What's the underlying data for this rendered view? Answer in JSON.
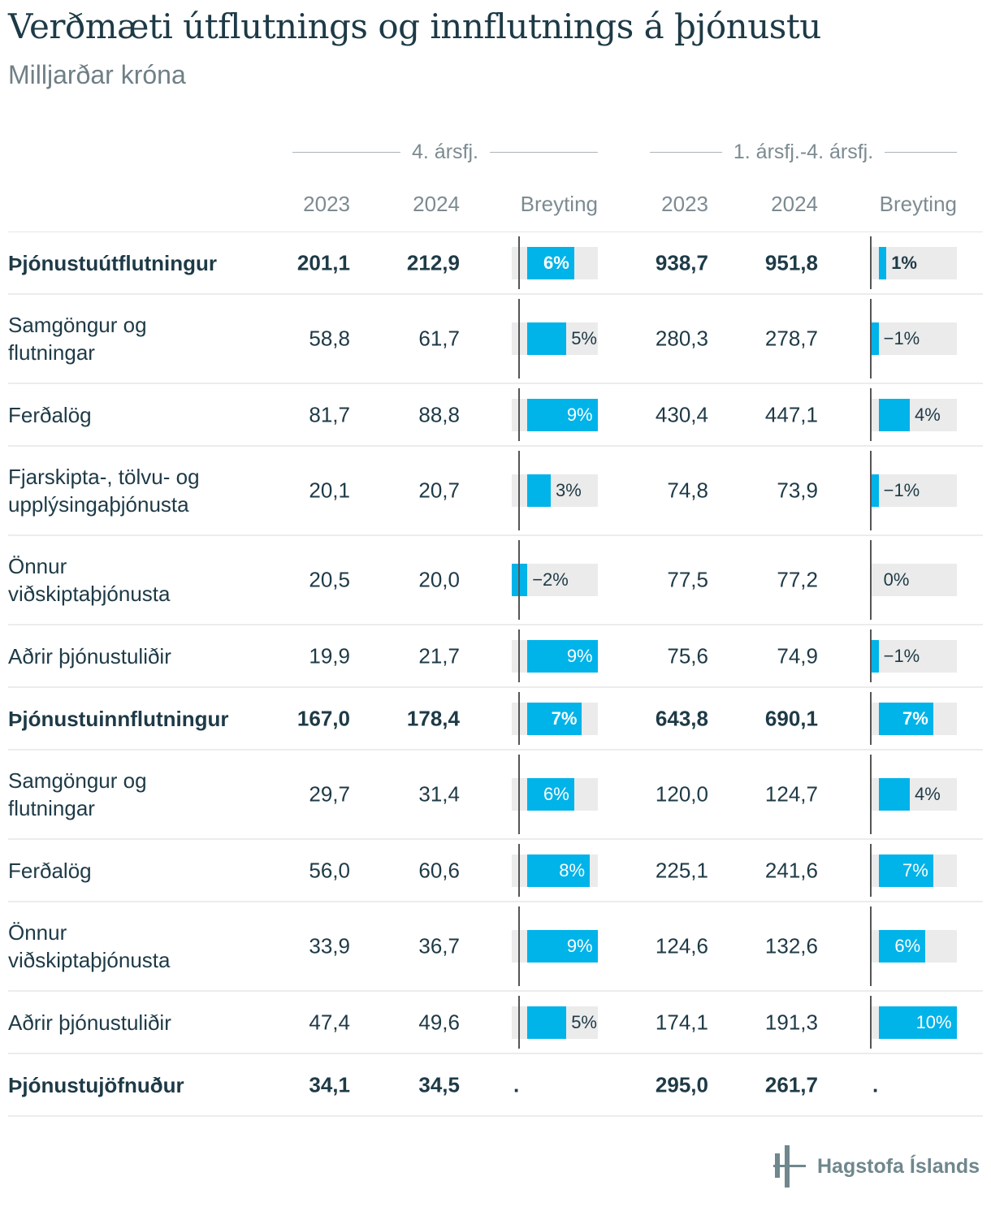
{
  "title": "Verðmæti útflutnings og innflutnings á þjónustu",
  "subtitle": "Milljarðar króna",
  "groups": [
    "4. ársfj.",
    "1. ársfj.-4. ársfj."
  ],
  "columns": [
    "2023",
    "2024",
    "Breyting",
    "2023",
    "2024",
    "Breyting"
  ],
  "colors": {
    "bar": "#00b3e9",
    "bar_bg": "#ebebeb",
    "text": "#1e3a47"
  },
  "logo": "Hagstofa Íslands",
  "chart_data": {
    "type": "table",
    "bar_columns": [
      "Breyting"
    ],
    "rows": [
      {
        "label": "Þjónustuútflutningur",
        "bold": true,
        "q4_2023": "201,1",
        "q4_2024": "212,9",
        "q4_change": 6,
        "q4_change_label": "6%",
        "y_2023": "938,7",
        "y_2024": "951,8",
        "y_change": 1,
        "y_change_label": "1%"
      },
      {
        "label": "Samgöngur og flutningar",
        "bold": false,
        "q4_2023": "58,8",
        "q4_2024": "61,7",
        "q4_change": 5,
        "q4_change_label": "5%",
        "y_2023": "280,3",
        "y_2024": "278,7",
        "y_change": -1,
        "y_change_label": "−1%"
      },
      {
        "label": "Ferðalög",
        "bold": false,
        "q4_2023": "81,7",
        "q4_2024": "88,8",
        "q4_change": 9,
        "q4_change_label": "9%",
        "y_2023": "430,4",
        "y_2024": "447,1",
        "y_change": 4,
        "y_change_label": "4%"
      },
      {
        "label": "Fjarskipta-, tölvu- og upplýsingaþjónusta",
        "bold": false,
        "q4_2023": "20,1",
        "q4_2024": "20,7",
        "q4_change": 3,
        "q4_change_label": "3%",
        "y_2023": "74,8",
        "y_2024": "73,9",
        "y_change": -1,
        "y_change_label": "−1%"
      },
      {
        "label": "Önnur viðskiptaþjónusta",
        "bold": false,
        "q4_2023": "20,5",
        "q4_2024": "20,0",
        "q4_change": -2,
        "q4_change_label": "−2%",
        "y_2023": "77,5",
        "y_2024": "77,2",
        "y_change": 0,
        "y_change_label": "0%"
      },
      {
        "label": "Aðrir þjónustuliðir",
        "bold": false,
        "q4_2023": "19,9",
        "q4_2024": "21,7",
        "q4_change": 9,
        "q4_change_label": "9%",
        "y_2023": "75,6",
        "y_2024": "74,9",
        "y_change": -1,
        "y_change_label": "−1%"
      },
      {
        "label": "Þjónustuinnflutningur",
        "bold": true,
        "q4_2023": "167,0",
        "q4_2024": "178,4",
        "q4_change": 7,
        "q4_change_label": "7%",
        "y_2023": "643,8",
        "y_2024": "690,1",
        "y_change": 7,
        "y_change_label": "7%"
      },
      {
        "label": "Samgöngur og flutningar",
        "bold": false,
        "q4_2023": "29,7",
        "q4_2024": "31,4",
        "q4_change": 6,
        "q4_change_label": "6%",
        "y_2023": "120,0",
        "y_2024": "124,7",
        "y_change": 4,
        "y_change_label": "4%"
      },
      {
        "label": "Ferðalög",
        "bold": false,
        "q4_2023": "56,0",
        "q4_2024": "60,6",
        "q4_change": 8,
        "q4_change_label": "8%",
        "y_2023": "225,1",
        "y_2024": "241,6",
        "y_change": 7,
        "y_change_label": "7%"
      },
      {
        "label": "Önnur viðskiptaþjónusta",
        "bold": false,
        "q4_2023": "33,9",
        "q4_2024": "36,7",
        "q4_change": 9,
        "q4_change_label": "9%",
        "y_2023": "124,6",
        "y_2024": "132,6",
        "y_change": 6,
        "y_change_label": "6%"
      },
      {
        "label": "Aðrir þjónustuliðir",
        "bold": false,
        "q4_2023": "47,4",
        "q4_2024": "49,6",
        "q4_change": 5,
        "q4_change_label": "5%",
        "y_2023": "174,1",
        "y_2024": "191,3",
        "y_change": 10,
        "y_change_label": "10%"
      },
      {
        "label": "Þjónustujöfnuður",
        "bold": true,
        "q4_2023": "34,1",
        "q4_2024": "34,5",
        "q4_change": null,
        "q4_change_label": ".",
        "y_2023": "295,0",
        "y_2024": "261,7",
        "y_change": null,
        "y_change_label": "."
      }
    ]
  }
}
